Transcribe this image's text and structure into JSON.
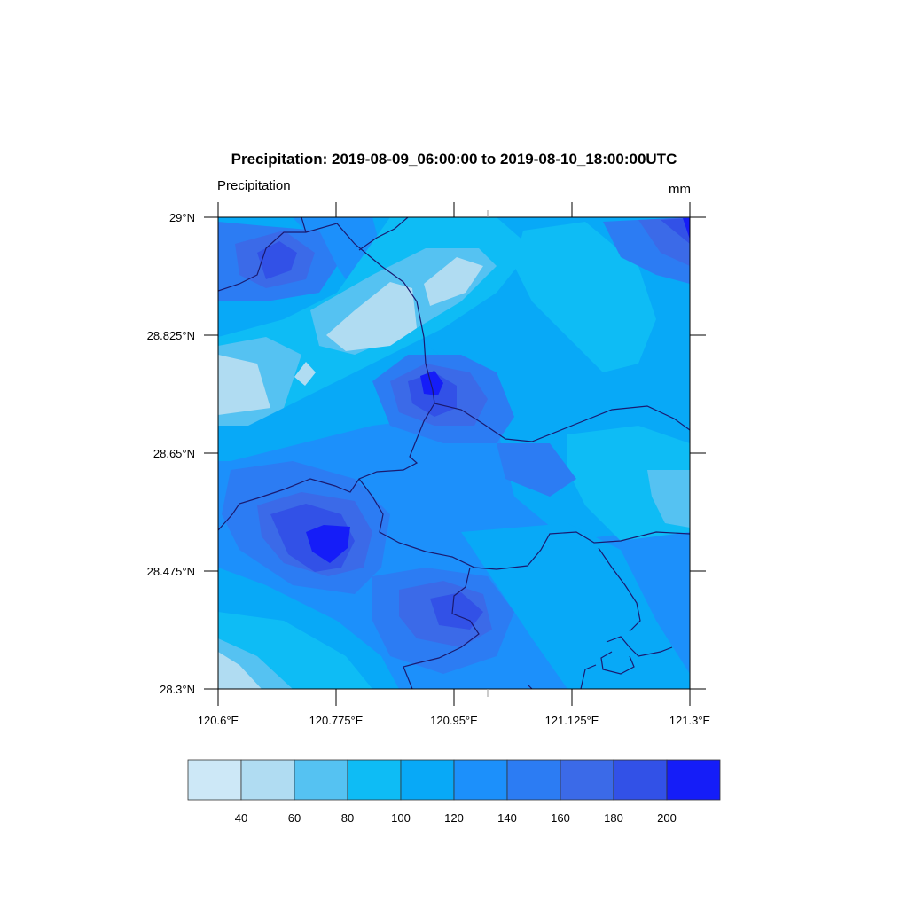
{
  "title": "Precipitation: 2019-08-09_06:00:00 to 2019-08-10_18:00:00UTC",
  "left_label": "Precipitation",
  "units": "mm",
  "map": {
    "lat_ticks": [
      "29°N",
      "28.825°N",
      "28.65°N",
      "28.475°N",
      "28.3°N"
    ],
    "lon_ticks": [
      "120.6°E",
      "120.775°E",
      "120.95°E",
      "121.125°E",
      "121.3°E"
    ],
    "lat_range": [
      28.3,
      29.0
    ],
    "lon_range": [
      120.6,
      121.3
    ]
  },
  "colorbar": {
    "levels": [
      "40",
      "60",
      "80",
      "100",
      "120",
      "140",
      "160",
      "180",
      "200"
    ],
    "colors": [
      "#cde8f7",
      "#b0dcf2",
      "#55c2f2",
      "#0ebcf5",
      "#08a9f7",
      "#1c90fb",
      "#2c7cf3",
      "#3b6ae8",
      "#3251e7",
      "#151df8"
    ]
  },
  "chart_data": {
    "type": "heatmap",
    "title": "Precipitation: 2019-08-09_06:00:00 to 2019-08-10_18:00:00UTC",
    "xlabel": "",
    "ylabel": "",
    "xlim": [
      120.6,
      121.3
    ],
    "ylim": [
      28.3,
      29.0
    ],
    "units": "mm",
    "contour_levels": [
      40,
      60,
      80,
      100,
      120,
      140,
      160,
      180,
      200
    ]
  }
}
